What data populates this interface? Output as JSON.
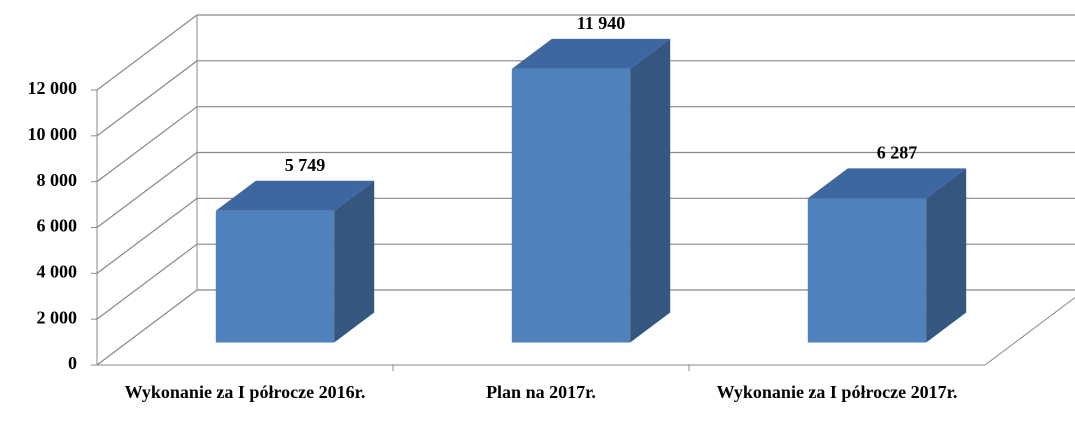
{
  "chart_data": {
    "type": "bar3d",
    "categories": [
      "Wykonanie za I półrocze 2016r.",
      "Plan na 2017r.",
      "Wykonanie za I półrocze 2017r."
    ],
    "values": [
      5749,
      11940,
      6287
    ],
    "value_labels": [
      "5 749",
      "11 940",
      "6 287"
    ],
    "color": "#4f81bd",
    "ylim": [
      0,
      12000
    ],
    "yticks": [
      0,
      {
        "value": 2000,
        "label": "2 000"
      },
      {
        "value": 4000,
        "label": "4 000"
      },
      {
        "value": 6000,
        "label": "6 000"
      },
      {
        "value": 8000,
        "label": "8 000"
      },
      {
        "value": 10000,
        "label": "10 000"
      },
      {
        "value": 12000,
        "label": "12 000"
      }
    ],
    "grid": true
  }
}
